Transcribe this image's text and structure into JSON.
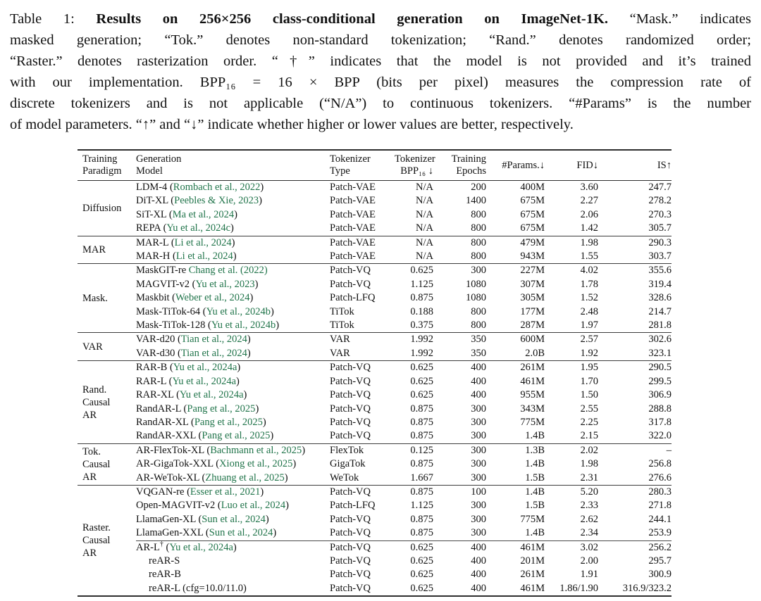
{
  "caption": {
    "label": "Table 1: ",
    "bold": "Results on 256×256 class-conditional generation on ImageNet-1K.",
    "line1_rest": " “Mask.” indicates",
    "lines": [
      "masked generation; “Tok.” denotes non-standard tokenization; “Rand.” denotes randomized order;",
      "“Raster.” denotes rasterization order. “†” indicates that the model is not provided and it’s trained",
      "with our implementation. BPP₁₆ = 16 × BPP (bits per pixel) measures the compression rate of",
      "discrete tokenizers and is not applicable (“N/A”) to continuous tokenizers. “#Params” is the number",
      "of model parameters. “↑” and “↓” indicate whether higher or lower values are better, respectively."
    ]
  },
  "colors": {
    "citation_green": "#20744a",
    "text": "#111111",
    "rule": "#2e2e2e"
  },
  "table": {
    "columns": [
      {
        "id": "paradigm",
        "label": "Training\nParadigm"
      },
      {
        "id": "model",
        "label": "Generation\nModel"
      },
      {
        "id": "tokenizer",
        "label": "Tokenizer\nType"
      },
      {
        "id": "bpp",
        "label": "Tokenizer\nBPP₁₆ ↓"
      },
      {
        "id": "epochs",
        "label": "Training\nEpochs"
      },
      {
        "id": "params",
        "label": "#Params.↓"
      },
      {
        "id": "fid",
        "label": "FID↓"
      },
      {
        "id": "is",
        "label": "IS↑"
      }
    ],
    "sections": [
      {
        "paradigm": "Diffusion",
        "rows": [
          {
            "model": "LDM-4",
            "cite_prefix": " (",
            "cite": "Rombach et al., 2022",
            "cite_suffix": ")",
            "tokenizer": "Patch-VAE",
            "bpp": "N/A",
            "epochs": "200",
            "params": "400M",
            "fid": "3.60",
            "is": "247.7"
          },
          {
            "model": "DiT-XL",
            "cite_prefix": " (",
            "cite": "Peebles & Xie, 2023",
            "cite_suffix": ")",
            "tokenizer": "Patch-VAE",
            "bpp": "N/A",
            "epochs": "1400",
            "params": "675M",
            "fid": "2.27",
            "is": "278.2"
          },
          {
            "model": "SiT-XL",
            "cite_prefix": " (",
            "cite": "Ma et al., 2024",
            "cite_suffix": ")",
            "tokenizer": "Patch-VAE",
            "bpp": "N/A",
            "epochs": "800",
            "params": "675M",
            "fid": "2.06",
            "is": "270.3"
          },
          {
            "model": "REPA",
            "cite_prefix": " (",
            "cite": "Yu et al., 2024c",
            "cite_suffix": ")",
            "tokenizer": "Patch-VAE",
            "bpp": "N/A",
            "epochs": "800",
            "params": "675M",
            "fid": "1.42",
            "is": "305.7"
          }
        ]
      },
      {
        "paradigm": "MAR",
        "rows": [
          {
            "model": "MAR-L",
            "cite_prefix": " (",
            "cite": "Li et al., 2024",
            "cite_suffix": ")",
            "tokenizer": "Patch-VAE",
            "bpp": "N/A",
            "epochs": "800",
            "params": "479M",
            "fid": "1.98",
            "is": "290.3"
          },
          {
            "model": "MAR-H",
            "cite_prefix": " (",
            "cite": "Li et al., 2024",
            "cite_suffix": ")",
            "tokenizer": "Patch-VAE",
            "bpp": "N/A",
            "epochs": "800",
            "params": "943M",
            "fid": "1.55",
            "is": "303.7"
          }
        ]
      },
      {
        "paradigm": "Mask.",
        "rows": [
          {
            "model": "MaskGIT-re",
            "cite_prefix": " ",
            "cite": "Chang et al. (2022)",
            "cite_suffix": "",
            "tokenizer": "Patch-VQ",
            "bpp": "0.625",
            "epochs": "300",
            "params": "227M",
            "fid": "4.02",
            "is": "355.6"
          },
          {
            "model": "MAGVIT-v2",
            "cite_prefix": " (",
            "cite": "Yu et al., 2023",
            "cite_suffix": ")",
            "tokenizer": "Patch-VQ",
            "bpp": "1.125",
            "epochs": "1080",
            "params": "307M",
            "fid": "1.78",
            "is": "319.4"
          },
          {
            "model": "Maskbit",
            "cite_prefix": " (",
            "cite": "Weber et al., 2024",
            "cite_suffix": ")",
            "tokenizer": "Patch-LFQ",
            "bpp": "0.875",
            "epochs": "1080",
            "params": "305M",
            "fid": "1.52",
            "is": "328.6"
          },
          {
            "model": "Mask-TiTok-64",
            "cite_prefix": " (",
            "cite": "Yu et al., 2024b",
            "cite_suffix": ")",
            "tokenizer": "TiTok",
            "bpp": "0.188",
            "epochs": "800",
            "params": "177M",
            "fid": "2.48",
            "is": "214.7"
          },
          {
            "model": "Mask-TiTok-128",
            "cite_prefix": " (",
            "cite": "Yu et al., 2024b",
            "cite_suffix": ")",
            "tokenizer": "TiTok",
            "bpp": "0.375",
            "epochs": "800",
            "params": "287M",
            "fid": "1.97",
            "is": "281.8"
          }
        ]
      },
      {
        "paradigm": "VAR",
        "rows": [
          {
            "model": "VAR-d20",
            "cite_prefix": " (",
            "cite": "Tian et al., 2024",
            "cite_suffix": ")",
            "tokenizer": "VAR",
            "bpp": "1.992",
            "epochs": "350",
            "params": "600M",
            "fid": "2.57",
            "is": "302.6"
          },
          {
            "model": "VAR-d30",
            "cite_prefix": " (",
            "cite": "Tian et al., 2024",
            "cite_suffix": ")",
            "tokenizer": "VAR",
            "bpp": "1.992",
            "epochs": "350",
            "params": "2.0B",
            "fid": "1.92",
            "is": "323.1"
          }
        ]
      },
      {
        "paradigm": "Rand.\nCausal\nAR",
        "rows": [
          {
            "model": "RAR-B",
            "cite_prefix": " (",
            "cite": "Yu et al., 2024a",
            "cite_suffix": ")",
            "tokenizer": "Patch-VQ",
            "bpp": "0.625",
            "epochs": "400",
            "params": "261M",
            "fid": "1.95",
            "is": "290.5"
          },
          {
            "model": "RAR-L",
            "cite_prefix": " (",
            "cite": "Yu et al., 2024a",
            "cite_suffix": ")",
            "tokenizer": "Patch-VQ",
            "bpp": "0.625",
            "epochs": "400",
            "params": "461M",
            "fid": "1.70",
            "is": "299.5"
          },
          {
            "model": "RAR-XL",
            "cite_prefix": " (",
            "cite": "Yu et al., 2024a",
            "cite_suffix": ")",
            "tokenizer": "Patch-VQ",
            "bpp": "0.625",
            "epochs": "400",
            "params": "955M",
            "fid": "1.50",
            "is": "306.9"
          },
          {
            "model": "RandAR-L",
            "cite_prefix": " (",
            "cite": "Pang et al., 2025",
            "cite_suffix": ")",
            "tokenizer": "Patch-VQ",
            "bpp": "0.875",
            "epochs": "300",
            "params": "343M",
            "fid": "2.55",
            "is": "288.8"
          },
          {
            "model": "RandAR-XL",
            "cite_prefix": " (",
            "cite": "Pang et al., 2025",
            "cite_suffix": ")",
            "tokenizer": "Patch-VQ",
            "bpp": "0.875",
            "epochs": "300",
            "params": "775M",
            "fid": "2.25",
            "is": "317.8"
          },
          {
            "model": "RandAR-XXL",
            "cite_prefix": " (",
            "cite": "Pang et al., 2025",
            "cite_suffix": ")",
            "tokenizer": "Patch-VQ",
            "bpp": "0.875",
            "epochs": "300",
            "params": "1.4B",
            "fid": "2.15",
            "is": "322.0"
          }
        ]
      },
      {
        "paradigm": "Tok.\nCausal\nAR",
        "rows": [
          {
            "model": "AR-FlexTok-XL",
            "cite_prefix": " (",
            "cite": "Bachmann et al., 2025",
            "cite_suffix": ")",
            "tokenizer": "FlexTok",
            "bpp": "0.125",
            "epochs": "300",
            "params": "1.3B",
            "fid": "2.02",
            "is": "–"
          },
          {
            "model": "AR-GigaTok-XXL",
            "cite_prefix": " (",
            "cite": "Xiong et al., 2025",
            "cite_suffix": ")",
            "tokenizer": "GigaTok",
            "bpp": "0.875",
            "epochs": "300",
            "params": "1.4B",
            "fid": "1.98",
            "is": "256.8"
          },
          {
            "model": "AR-WeTok-XL",
            "cite_prefix": " (",
            "cite": "Zhuang et al., 2025",
            "cite_suffix": ")",
            "tokenizer": "WeTok",
            "bpp": "1.667",
            "epochs": "300",
            "params": "1.5B",
            "fid": "2.31",
            "is": "276.6"
          }
        ]
      },
      {
        "paradigm": "Raster.\nCausal\nAR",
        "rows": [
          {
            "model": "VQGAN-re",
            "cite_prefix": " (",
            "cite": "Esser et al., 2021",
            "cite_suffix": ")",
            "tokenizer": "Patch-VQ",
            "bpp": "0.875",
            "epochs": "100",
            "params": "1.4B",
            "fid": "5.20",
            "is": "280.3"
          },
          {
            "model": "Open-MAGVIT-v2",
            "cite_prefix": " (",
            "cite": "Luo et al., 2024",
            "cite_suffix": ")",
            "tokenizer": "Patch-LFQ",
            "bpp": "1.125",
            "epochs": "300",
            "params": "1.5B",
            "fid": "2.33",
            "is": "271.8"
          },
          {
            "model": "LlamaGen-XL",
            "cite_prefix": " (",
            "cite": "Sun et al., 2024",
            "cite_suffix": ")",
            "tokenizer": "Patch-VQ",
            "bpp": "0.875",
            "epochs": "300",
            "params": "775M",
            "fid": "2.62",
            "is": "244.1"
          },
          {
            "model": "LlamaGen-XXL",
            "cite_prefix": " (",
            "cite": "Sun et al., 2024",
            "cite_suffix": ")",
            "tokenizer": "Patch-VQ",
            "bpp": "0.875",
            "epochs": "300",
            "params": "1.4B",
            "fid": "2.34",
            "is": "253.9"
          },
          {
            "model": "AR-L",
            "sup": "†",
            "rule_above": true,
            "cite_prefix": " (",
            "cite": "Yu et al., 2024a",
            "cite_suffix": ")",
            "tokenizer": "Patch-VQ",
            "bpp": "0.625",
            "epochs": "400",
            "params": "461M",
            "fid": "3.02",
            "is": "256.2"
          },
          {
            "model": "reAR-S",
            "indent": true,
            "tokenizer": "Patch-VQ",
            "bpp": "0.625",
            "epochs": "400",
            "params": "201M",
            "fid": "2.00",
            "is": "295.7"
          },
          {
            "model": "reAR-B",
            "indent": true,
            "tokenizer": "Patch-VQ",
            "bpp": "0.625",
            "epochs": "400",
            "params": "261M",
            "fid": "1.91",
            "is": "300.9"
          },
          {
            "model": "reAR-L (cfg=10.0/11.0)",
            "indent": true,
            "tokenizer": "Patch-VQ",
            "bpp": "0.625",
            "epochs": "400",
            "params": "461M",
            "fid": "1.86/1.90",
            "is": "316.9/323.2"
          }
        ]
      }
    ]
  }
}
